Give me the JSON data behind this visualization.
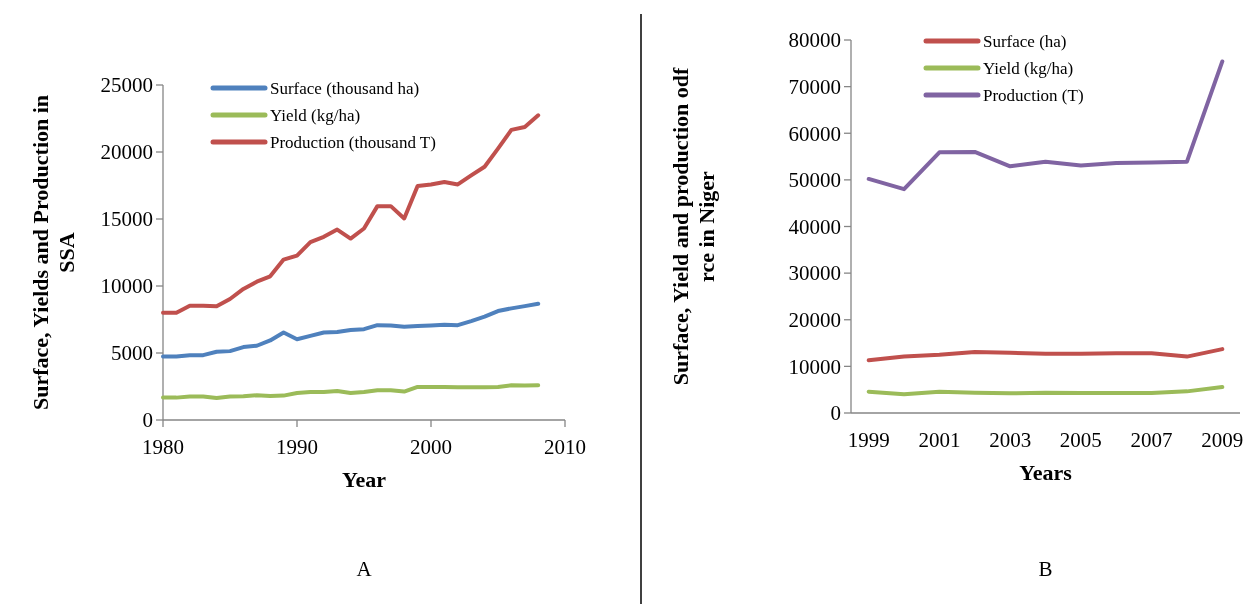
{
  "chart_data": [
    {
      "type": "line",
      "xlabel": "Year",
      "ylabel": "Surface, Yields and Production in SSA",
      "x": [
        1980,
        1981,
        1982,
        1983,
        1984,
        1985,
        1986,
        1987,
        1988,
        1989,
        1990,
        1991,
        1992,
        1993,
        1994,
        1995,
        1996,
        1997,
        1998,
        1999,
        2000,
        2001,
        2002,
        2003,
        2004,
        2005,
        2006,
        2007,
        2008
      ],
      "xlim": [
        1980,
        2010
      ],
      "xticks": [
        1980,
        1990,
        2000,
        2010
      ],
      "ylim": [
        0,
        25000
      ],
      "yticks": [
        0,
        5000,
        10000,
        15000,
        20000,
        25000
      ],
      "legend": "top",
      "grid": false,
      "annotations": [
        "A"
      ],
      "series": [
        {
          "name": "Surface (thousand ha)",
          "color": "#4f81bd",
          "values": [
            4740,
            4740,
            4840,
            4840,
            5090,
            5140,
            5440,
            5540,
            5940,
            6530,
            6030,
            6280,
            6530,
            6560,
            6710,
            6780,
            7080,
            7060,
            6960,
            7010,
            7060,
            7110,
            7080,
            7380,
            7710,
            8130,
            8330,
            8500,
            8680
          ]
        },
        {
          "name": "Yield (kg/ha)",
          "color": "#9bbb59",
          "values": [
            1670,
            1670,
            1750,
            1750,
            1650,
            1750,
            1770,
            1850,
            1800,
            1820,
            2020,
            2090,
            2090,
            2170,
            2020,
            2090,
            2220,
            2220,
            2120,
            2470,
            2470,
            2470,
            2440,
            2440,
            2440,
            2470,
            2590,
            2570,
            2590
          ]
        },
        {
          "name": "Production (thousand T)",
          "color": "#c0504d",
          "values": [
            8000,
            8000,
            8530,
            8530,
            8480,
            9030,
            9780,
            10320,
            10720,
            11970,
            12270,
            13270,
            13670,
            14210,
            13540,
            14290,
            15960,
            15960,
            15040,
            17460,
            17580,
            17760,
            17580,
            18250,
            18900,
            20250,
            21650,
            21870,
            22740
          ]
        }
      ]
    },
    {
      "type": "line",
      "xlabel": "Years",
      "ylabel": "Surface, Yield and production odf rce in Niger",
      "categories": [
        "1999",
        null,
        "2001",
        null,
        "2003",
        null,
        "2005",
        null,
        "2007",
        null,
        "2009"
      ],
      "ylim": [
        0,
        80000
      ],
      "yticks": [
        0,
        10000,
        20000,
        30000,
        40000,
        50000,
        60000,
        70000,
        80000
      ],
      "legend": "top",
      "grid": false,
      "annotations": [
        "B"
      ],
      "series": [
        {
          "name": "Surface (ha)",
          "color": "#c0504d",
          "values": [
            11300,
            12100,
            12500,
            13100,
            12900,
            12700,
            12700,
            12800,
            12800,
            12100,
            13700
          ]
        },
        {
          "name": "Yield (kg/ha)",
          "color": "#9bbb59",
          "values": [
            4570,
            4000,
            4570,
            4360,
            4210,
            4360,
            4290,
            4290,
            4290,
            4640,
            5570
          ]
        },
        {
          "name": "Production (T)",
          "color": "#8064a2",
          "values": [
            50200,
            48000,
            55900,
            56000,
            52900,
            53900,
            53100,
            53600,
            53700,
            53900,
            75400
          ]
        }
      ]
    }
  ]
}
